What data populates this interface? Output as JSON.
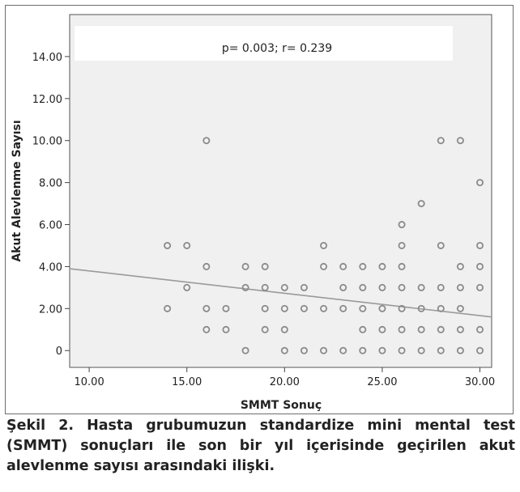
{
  "chart_data": {
    "type": "scatter",
    "xlabel": "SMMT Sonuç",
    "ylabel": "Akut Alevlenme Sayısı",
    "xlim": [
      9,
      30.6
    ],
    "ylim": [
      -0.8,
      16
    ],
    "x_ticks": [
      "10.00",
      "15.00",
      "20.00",
      "25.00",
      "30.00"
    ],
    "y_ticks": [
      "0",
      "2.00",
      "4.00",
      "6.00",
      "8.00",
      "10.00",
      "12.00",
      "14.00"
    ],
    "annotation": "p= 0.003; r= 0.239",
    "grid": false,
    "plot_background": "#f0f0f0",
    "marker_color": "#8a8a8a",
    "line_color": "#9a9a9a",
    "regression_line": {
      "x": [
        9,
        30.6
      ],
      "y": [
        3.9,
        1.6
      ]
    },
    "points": [
      {
        "x": 14,
        "y": 5
      },
      {
        "x": 14,
        "y": 2
      },
      {
        "x": 15,
        "y": 5
      },
      {
        "x": 15,
        "y": 3
      },
      {
        "x": 16,
        "y": 10
      },
      {
        "x": 16,
        "y": 4
      },
      {
        "x": 16,
        "y": 2
      },
      {
        "x": 16,
        "y": 1
      },
      {
        "x": 17,
        "y": 2
      },
      {
        "x": 17,
        "y": 1
      },
      {
        "x": 18,
        "y": 4
      },
      {
        "x": 18,
        "y": 3
      },
      {
        "x": 18,
        "y": 0
      },
      {
        "x": 19,
        "y": 4
      },
      {
        "x": 19,
        "y": 3
      },
      {
        "x": 19,
        "y": 2
      },
      {
        "x": 19,
        "y": 1
      },
      {
        "x": 20,
        "y": 3
      },
      {
        "x": 20,
        "y": 2
      },
      {
        "x": 20,
        "y": 1
      },
      {
        "x": 20,
        "y": 0
      },
      {
        "x": 21,
        "y": 3
      },
      {
        "x": 21,
        "y": 2
      },
      {
        "x": 21,
        "y": 0
      },
      {
        "x": 22,
        "y": 5
      },
      {
        "x": 22,
        "y": 4
      },
      {
        "x": 22,
        "y": 2
      },
      {
        "x": 22,
        "y": 0
      },
      {
        "x": 23,
        "y": 4
      },
      {
        "x": 23,
        "y": 3
      },
      {
        "x": 23,
        "y": 2
      },
      {
        "x": 23,
        "y": 0
      },
      {
        "x": 24,
        "y": 4
      },
      {
        "x": 24,
        "y": 3
      },
      {
        "x": 24,
        "y": 2
      },
      {
        "x": 24,
        "y": 1
      },
      {
        "x": 24,
        "y": 0
      },
      {
        "x": 25,
        "y": 4
      },
      {
        "x": 25,
        "y": 3
      },
      {
        "x": 25,
        "y": 2
      },
      {
        "x": 25,
        "y": 1
      },
      {
        "x": 25,
        "y": 0
      },
      {
        "x": 26,
        "y": 6
      },
      {
        "x": 26,
        "y": 5
      },
      {
        "x": 26,
        "y": 4
      },
      {
        "x": 26,
        "y": 3
      },
      {
        "x": 26,
        "y": 2
      },
      {
        "x": 26,
        "y": 1
      },
      {
        "x": 26,
        "y": 0
      },
      {
        "x": 27,
        "y": 7
      },
      {
        "x": 27,
        "y": 3
      },
      {
        "x": 27,
        "y": 2
      },
      {
        "x": 27,
        "y": 1
      },
      {
        "x": 27,
        "y": 0
      },
      {
        "x": 28,
        "y": 10
      },
      {
        "x": 28,
        "y": 5
      },
      {
        "x": 28,
        "y": 3
      },
      {
        "x": 28,
        "y": 2
      },
      {
        "x": 28,
        "y": 1
      },
      {
        "x": 28,
        "y": 0
      },
      {
        "x": 29,
        "y": 10
      },
      {
        "x": 29,
        "y": 4
      },
      {
        "x": 29,
        "y": 3
      },
      {
        "x": 29,
        "y": 2
      },
      {
        "x": 29,
        "y": 1
      },
      {
        "x": 29,
        "y": 0
      },
      {
        "x": 30,
        "y": 8
      },
      {
        "x": 30,
        "y": 5
      },
      {
        "x": 30,
        "y": 4
      },
      {
        "x": 30,
        "y": 3
      },
      {
        "x": 30,
        "y": 1
      },
      {
        "x": 30,
        "y": 0
      }
    ]
  },
  "caption": "Şekil 2. Hasta grubumuzun standardize mini mental test (SMMT) sonuçları ile son bir yıl içerisinde geçirilen akut alevlenme sayısı arasındaki ilişki."
}
